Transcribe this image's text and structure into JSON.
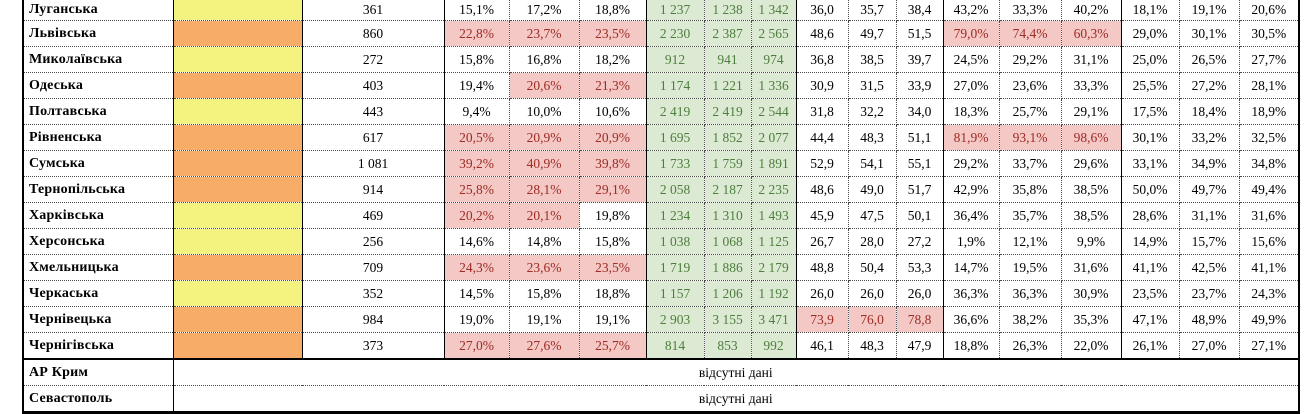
{
  "colors": {
    "yellow": "#f5f37f",
    "orange": "#f7ad68",
    "pink_bg": "#f3c8c5",
    "pink_text": "#9e2b24",
    "green_bg": "#dcead3",
    "green_text": "#4d7e3d"
  },
  "table": {
    "no_data_text": "відсутні дані",
    "rows": [
      {
        "name": "Луганська",
        "swatch": "yellow",
        "count": "361",
        "pct1": [
          "15,1%",
          "17,2%",
          "18,8%"
        ],
        "pct1_hl": [
          0,
          0,
          0
        ],
        "abs": [
          "1 237",
          "1 238",
          "1 342"
        ],
        "dec": [
          "36,0",
          "35,7",
          "38,4"
        ],
        "dec_hl": [
          0,
          0,
          0
        ],
        "pct2": [
          "43,2%",
          "33,3%",
          "40,2%"
        ],
        "pct2_hl": [
          0,
          0,
          0
        ],
        "pct3": [
          "18,1%",
          "19,1%",
          "20,6%"
        ]
      },
      {
        "name": "Львівська",
        "swatch": "orange",
        "count": "860",
        "pct1": [
          "22,8%",
          "23,7%",
          "23,5%"
        ],
        "pct1_hl": [
          1,
          1,
          1
        ],
        "abs": [
          "2 230",
          "2 387",
          "2 565"
        ],
        "dec": [
          "48,6",
          "49,7",
          "51,5"
        ],
        "dec_hl": [
          0,
          0,
          0
        ],
        "pct2": [
          "79,0%",
          "74,4%",
          "60,3%"
        ],
        "pct2_hl": [
          1,
          1,
          1
        ],
        "pct3": [
          "29,0%",
          "30,1%",
          "30,5%"
        ]
      },
      {
        "name": "Миколаївська",
        "swatch": "yellow",
        "count": "272",
        "pct1": [
          "15,8%",
          "16,8%",
          "18,2%"
        ],
        "pct1_hl": [
          0,
          0,
          0
        ],
        "abs": [
          "912",
          "941",
          "974"
        ],
        "dec": [
          "36,8",
          "38,5",
          "39,7"
        ],
        "dec_hl": [
          0,
          0,
          0
        ],
        "pct2": [
          "24,5%",
          "29,2%",
          "31,1%"
        ],
        "pct2_hl": [
          0,
          0,
          0
        ],
        "pct3": [
          "25,0%",
          "26,5%",
          "27,7%"
        ]
      },
      {
        "name": "Одеська",
        "swatch": "orange",
        "count": "403",
        "pct1": [
          "19,4%",
          "20,6%",
          "21,3%"
        ],
        "pct1_hl": [
          0,
          1,
          1
        ],
        "abs": [
          "1 174",
          "1 221",
          "1 336"
        ],
        "dec": [
          "30,9",
          "31,5",
          "33,9"
        ],
        "dec_hl": [
          0,
          0,
          0
        ],
        "pct2": [
          "27,0%",
          "23,6%",
          "33,3%"
        ],
        "pct2_hl": [
          0,
          0,
          0
        ],
        "pct3": [
          "25,5%",
          "27,2%",
          "28,1%"
        ]
      },
      {
        "name": "Полтавська",
        "swatch": "yellow",
        "count": "443",
        "pct1": [
          "9,4%",
          "10,0%",
          "10,6%"
        ],
        "pct1_hl": [
          0,
          0,
          0
        ],
        "abs": [
          "2 419",
          "2 419",
          "2 544"
        ],
        "dec": [
          "31,8",
          "32,2",
          "34,0"
        ],
        "dec_hl": [
          0,
          0,
          0
        ],
        "pct2": [
          "18,3%",
          "25,7%",
          "29,1%"
        ],
        "pct2_hl": [
          0,
          0,
          0
        ],
        "pct3": [
          "17,5%",
          "18,4%",
          "18,9%"
        ]
      },
      {
        "name": "Рівненська",
        "swatch": "orange",
        "count": "617",
        "pct1": [
          "20,5%",
          "20,9%",
          "20,9%"
        ],
        "pct1_hl": [
          1,
          1,
          1
        ],
        "abs": [
          "1 695",
          "1 852",
          "2 077"
        ],
        "dec": [
          "44,4",
          "48,3",
          "51,1"
        ],
        "dec_hl": [
          0,
          0,
          0
        ],
        "pct2": [
          "81,9%",
          "93,1%",
          "98,6%"
        ],
        "pct2_hl": [
          1,
          1,
          1
        ],
        "pct3": [
          "30,1%",
          "33,2%",
          "32,5%"
        ]
      },
      {
        "name": "Сумська",
        "swatch": "orange",
        "count": "1 081",
        "pct1": [
          "39,2%",
          "40,9%",
          "39,8%"
        ],
        "pct1_hl": [
          1,
          1,
          1
        ],
        "abs": [
          "1 733",
          "1 759",
          "1 891"
        ],
        "dec": [
          "52,9",
          "54,1",
          "55,1"
        ],
        "dec_hl": [
          0,
          0,
          0
        ],
        "pct2": [
          "29,2%",
          "33,7%",
          "29,6%"
        ],
        "pct2_hl": [
          0,
          0,
          0
        ],
        "pct3": [
          "33,1%",
          "34,9%",
          "34,8%"
        ]
      },
      {
        "name": "Тернопільська",
        "swatch": "orange",
        "count": "914",
        "pct1": [
          "25,8%",
          "28,1%",
          "29,1%"
        ],
        "pct1_hl": [
          1,
          1,
          1
        ],
        "abs": [
          "2 058",
          "2 187",
          "2 235"
        ],
        "dec": [
          "48,6",
          "49,0",
          "51,7"
        ],
        "dec_hl": [
          0,
          0,
          0
        ],
        "pct2": [
          "42,9%",
          "35,8%",
          "38,5%"
        ],
        "pct2_hl": [
          0,
          0,
          0
        ],
        "pct3": [
          "50,0%",
          "49,7%",
          "49,4%"
        ]
      },
      {
        "name": "Харківська",
        "swatch": "yellow",
        "count": "469",
        "pct1": [
          "20,2%",
          "20,1%",
          "19,8%"
        ],
        "pct1_hl": [
          1,
          1,
          0
        ],
        "abs": [
          "1 234",
          "1 310",
          "1 493"
        ],
        "dec": [
          "45,9",
          "47,5",
          "50,1"
        ],
        "dec_hl": [
          0,
          0,
          0
        ],
        "pct2": [
          "36,4%",
          "35,7%",
          "38,5%"
        ],
        "pct2_hl": [
          0,
          0,
          0
        ],
        "pct3": [
          "28,6%",
          "31,1%",
          "31,6%"
        ]
      },
      {
        "name": "Херсонська",
        "swatch": "yellow",
        "count": "256",
        "pct1": [
          "14,6%",
          "14,8%",
          "15,8%"
        ],
        "pct1_hl": [
          0,
          0,
          0
        ],
        "abs": [
          "1 038",
          "1 068",
          "1 125"
        ],
        "dec": [
          "26,7",
          "28,0",
          "27,2"
        ],
        "dec_hl": [
          0,
          0,
          0
        ],
        "pct2": [
          "1,9%",
          "12,1%",
          "9,9%"
        ],
        "pct2_hl": [
          0,
          0,
          0
        ],
        "pct3": [
          "14,9%",
          "15,7%",
          "15,6%"
        ]
      },
      {
        "name": "Хмельницька",
        "swatch": "orange",
        "count": "709",
        "pct1": [
          "24,3%",
          "23,6%",
          "23,5%"
        ],
        "pct1_hl": [
          1,
          1,
          1
        ],
        "abs": [
          "1 719",
          "1 886",
          "2 179"
        ],
        "dec": [
          "48,8",
          "50,4",
          "53,3"
        ],
        "dec_hl": [
          0,
          0,
          0
        ],
        "pct2": [
          "14,7%",
          "19,5%",
          "31,6%"
        ],
        "pct2_hl": [
          0,
          0,
          0
        ],
        "pct3": [
          "41,1%",
          "42,5%",
          "41,1%"
        ]
      },
      {
        "name": "Черкаська",
        "swatch": "yellow",
        "count": "352",
        "pct1": [
          "14,5%",
          "15,8%",
          "18,8%"
        ],
        "pct1_hl": [
          0,
          0,
          0
        ],
        "abs": [
          "1 157",
          "1 206",
          "1 192"
        ],
        "dec": [
          "26,0",
          "26,0",
          "26,0"
        ],
        "dec_hl": [
          0,
          0,
          0
        ],
        "pct2": [
          "36,3%",
          "36,3%",
          "30,9%"
        ],
        "pct2_hl": [
          0,
          0,
          0
        ],
        "pct3": [
          "23,5%",
          "23,7%",
          "24,3%"
        ]
      },
      {
        "name": "Чернівецька",
        "swatch": "orange",
        "count": "984",
        "pct1": [
          "19,0%",
          "19,1%",
          "19,1%"
        ],
        "pct1_hl": [
          0,
          0,
          0
        ],
        "abs": [
          "2 903",
          "3 155",
          "3 471"
        ],
        "dec": [
          "73,9",
          "76,0",
          "78,8"
        ],
        "dec_hl": [
          1,
          1,
          1
        ],
        "pct2": [
          "36,6%",
          "38,2%",
          "35,3%"
        ],
        "pct2_hl": [
          0,
          0,
          0
        ],
        "pct3": [
          "47,1%",
          "48,9%",
          "49,9%"
        ]
      },
      {
        "name": "Чернігівська",
        "swatch": "orange",
        "count": "373",
        "pct1": [
          "27,0%",
          "27,6%",
          "25,7%"
        ],
        "pct1_hl": [
          1,
          1,
          1
        ],
        "abs": [
          "814",
          "853",
          "992"
        ],
        "dec": [
          "46,1",
          "48,3",
          "47,9"
        ],
        "dec_hl": [
          0,
          0,
          0
        ],
        "pct2": [
          "18,8%",
          "26,3%",
          "22,0%"
        ],
        "pct2_hl": [
          0,
          0,
          0
        ],
        "pct3": [
          "26,1%",
          "27,0%",
          "27,1%"
        ]
      }
    ],
    "no_data_rows": [
      {
        "name": "АР Крим",
        "note": "відсутні дані"
      },
      {
        "name": "Севастополь",
        "note": "відсутні дані"
      }
    ]
  }
}
